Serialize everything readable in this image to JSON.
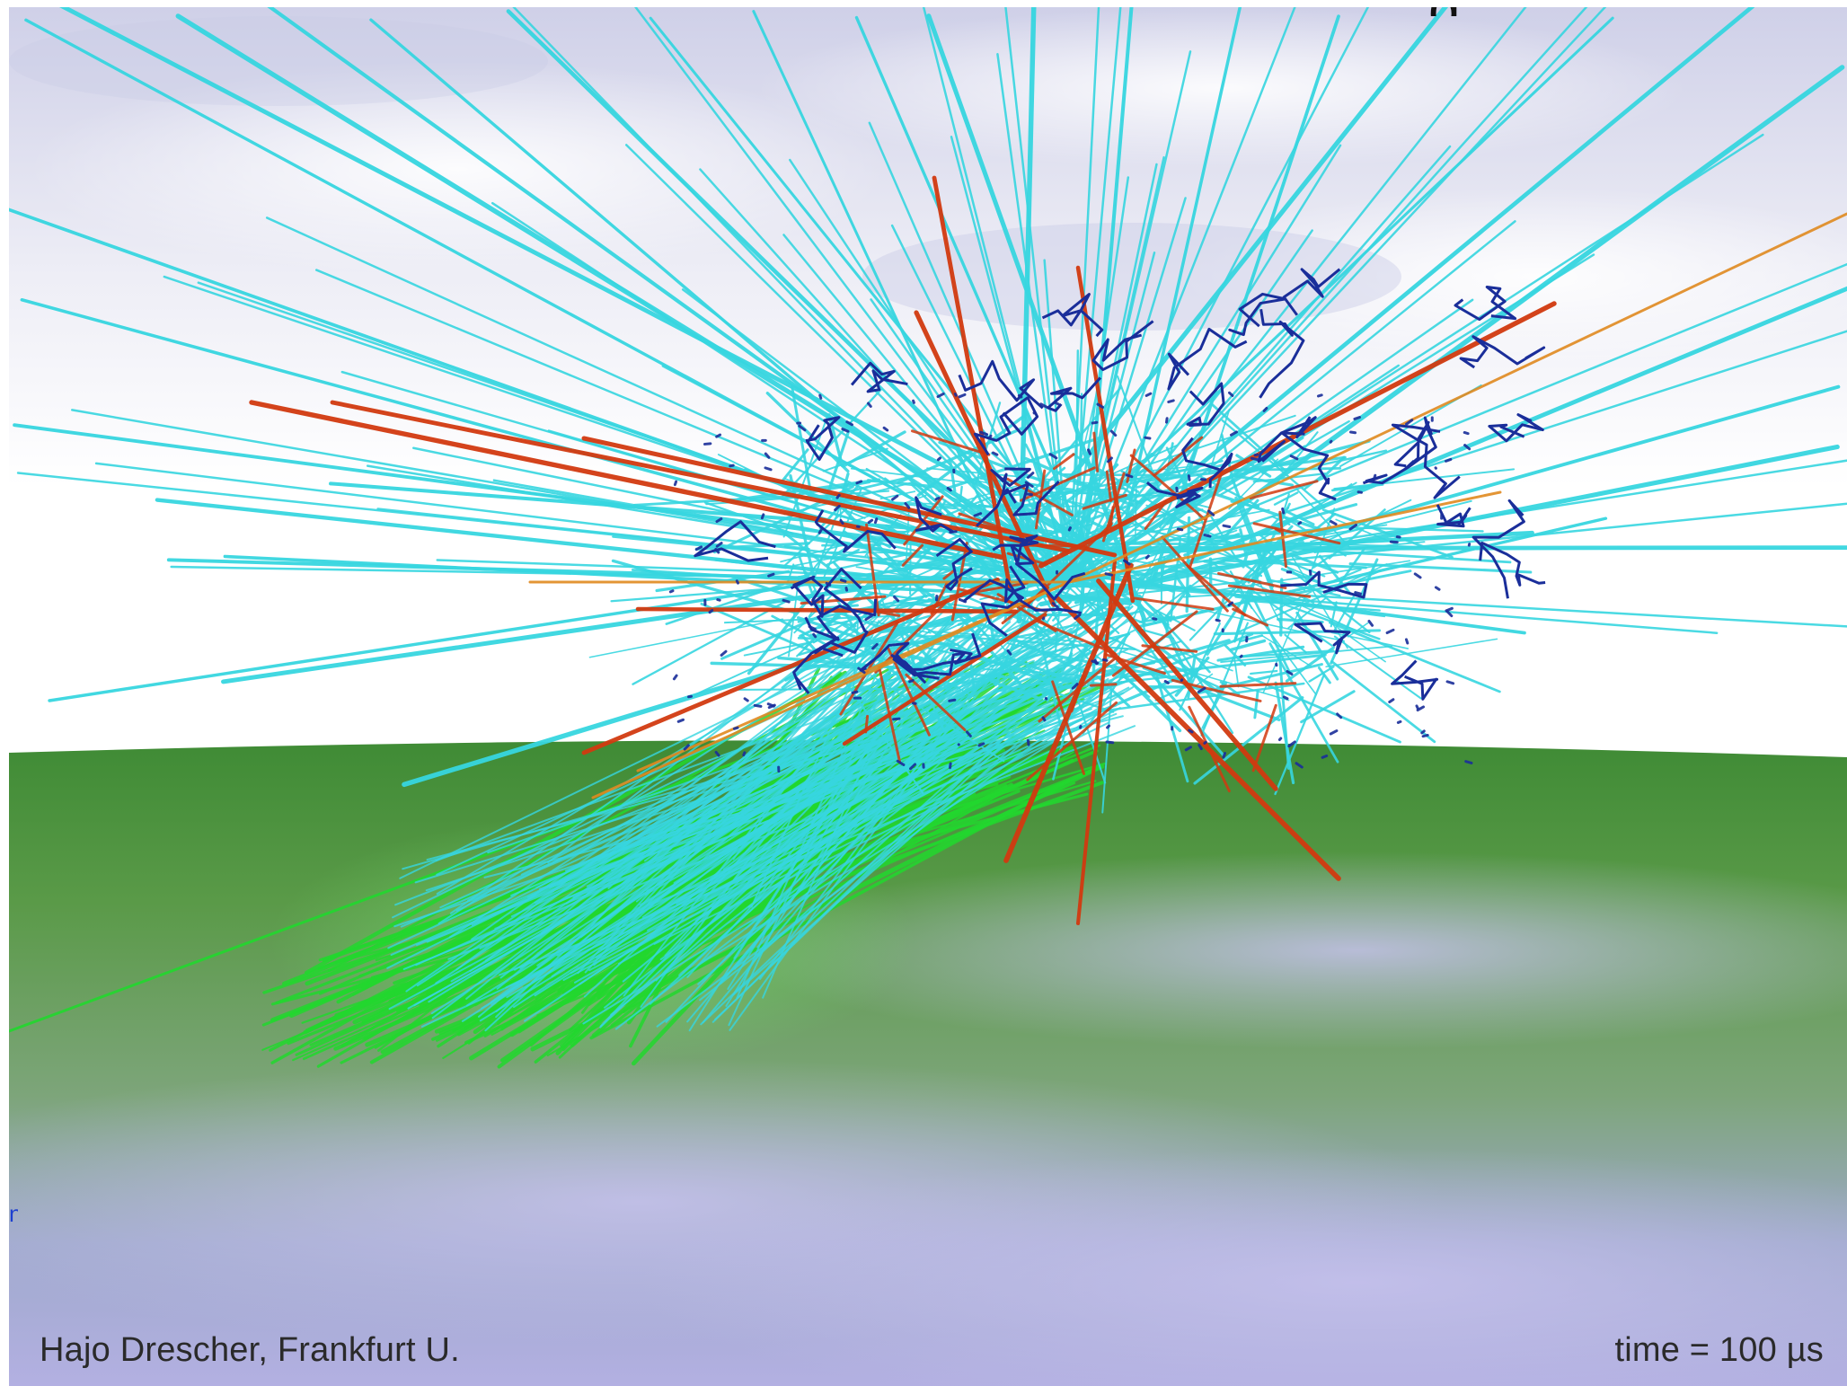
{
  "image": {
    "description_kind": "cosmic ray air shower simulation render",
    "credit": "Hajo Drescher, Frankfurt U.",
    "time_label": "time = 100 µs",
    "edge_fragment": "n",
    "top_fragment": "g"
  },
  "colors": {
    "sky_top": "#c9cbe6",
    "sky_cloud": "#e9eaf2",
    "horizon_white": "#ffffff",
    "ground_green": "#4f8f3c",
    "ground_haze": "#a7aed6",
    "track_cyan": "#37d6e0",
    "track_red": "#d23a10",
    "track_orange": "#e08a20",
    "track_blue": "#1a2e9a",
    "track_green": "#22d82e"
  },
  "icons": [
    "particle-tracks"
  ]
}
